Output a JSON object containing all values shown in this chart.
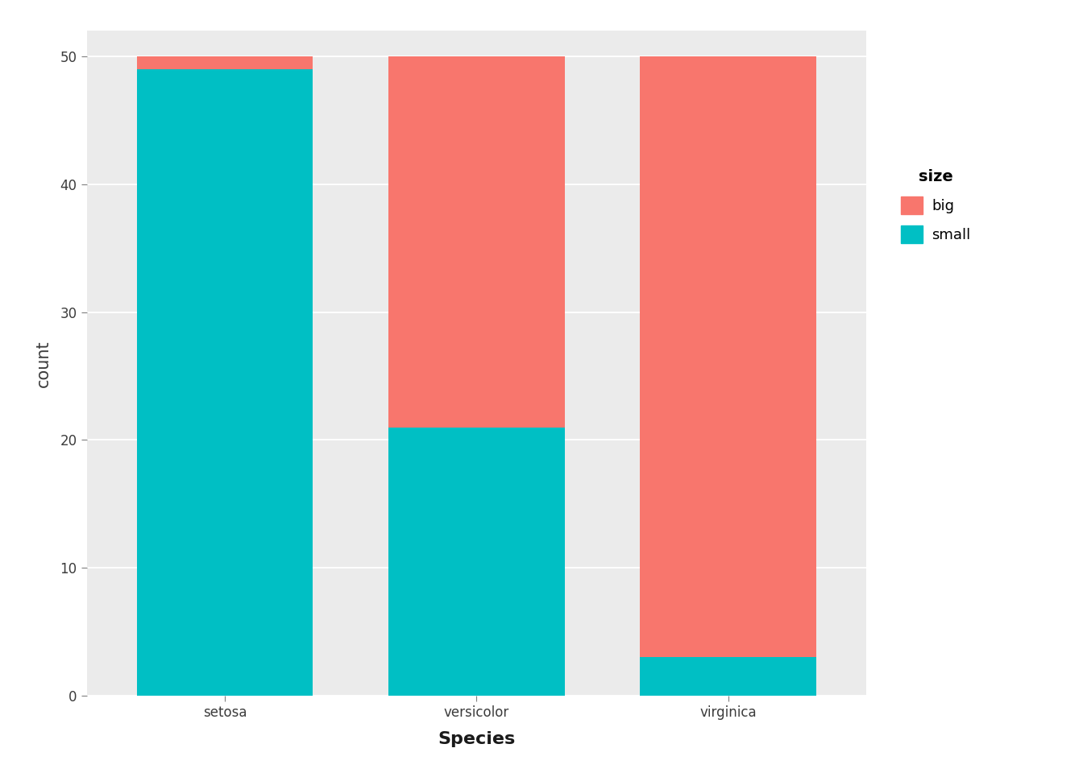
{
  "categories": [
    "setosa",
    "versicolor",
    "virginica"
  ],
  "small_values": [
    49,
    21,
    3
  ],
  "big_values": [
    1,
    29,
    47
  ],
  "color_big": "#F8766D",
  "color_small": "#00BFC4",
  "ylabel": "count",
  "xlabel": "Species",
  "legend_title": "size",
  "legend_labels": [
    "big",
    "small"
  ],
  "yticks": [
    0,
    10,
    20,
    30,
    40,
    50
  ],
  "ylim": [
    0,
    52
  ],
  "bg_color": "#EBEBEB",
  "grid_color": "#FFFFFF",
  "bar_width": 0.7,
  "axis_label_fontsize": 15,
  "tick_fontsize": 12,
  "legend_fontsize": 13,
  "legend_title_fontsize": 14
}
